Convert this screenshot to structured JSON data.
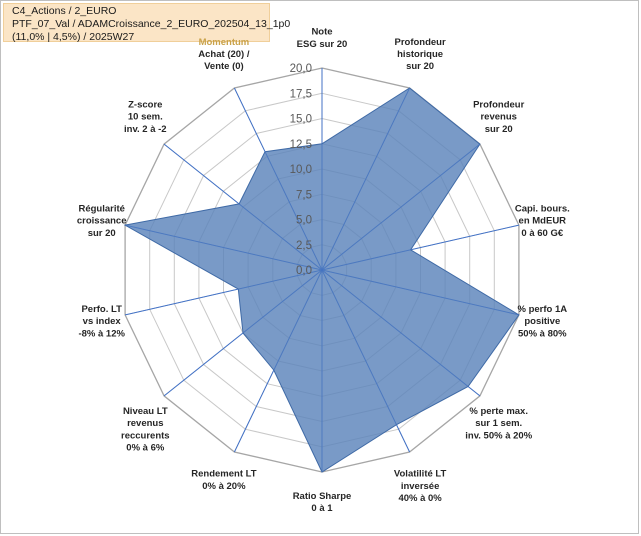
{
  "info_box": {
    "line1": "C4_Actions / 2_EURO",
    "line2": "PTF_07_Val / ADAMCroissance_2_EURO_202504_13_1p0",
    "line3": "(11,0% | 4,5%) / 2025W27"
  },
  "chart_data": {
    "type": "radar",
    "title": "",
    "rlim": [
      0,
      20
    ],
    "ticks": [
      "0,0",
      "2,5",
      "5,0",
      "7,5",
      "10,0",
      "12,5",
      "15,0",
      "17,5",
      "20,0"
    ],
    "grid": true,
    "axes": [
      {
        "label_lines": [
          "Note",
          "ESG sur 20"
        ],
        "value": 12.5
      },
      {
        "label_lines": [
          "Profondeur",
          "historique",
          "sur 20"
        ],
        "value": 20
      },
      {
        "label_lines": [
          "Profondeur",
          "revenus",
          "sur 20"
        ],
        "value": 20
      },
      {
        "label_lines": [
          "Capi. bours.",
          "en MdEUR",
          "0 à 60 G€"
        ],
        "value": 9
      },
      {
        "label_lines": [
          "% perfo 1A",
          "positive",
          "50% à 80%"
        ],
        "value": 20
      },
      {
        "label_lines": [
          "% perte max.",
          "sur 1 sem.",
          "inv. 50% à 20%"
        ],
        "value": 18.5
      },
      {
        "label_lines": [
          "Volatilité LT",
          "inversée",
          "40% à 0%"
        ],
        "value": 17
      },
      {
        "label_lines": [
          "Ratio Sharpe",
          "0 à 1"
        ],
        "value": 20
      },
      {
        "label_lines": [
          "Rendement LT",
          "0% à 20%"
        ],
        "value": 11
      },
      {
        "label_lines": [
          "Niveau LT",
          "revenus",
          "reccurents",
          "0% à 6%"
        ],
        "value": 10
      },
      {
        "label_lines": [
          "Perfo. LT",
          "vs index",
          "-8% à 12%"
        ],
        "value": 8.5
      },
      {
        "label_lines": [
          "Régularité",
          "croissance",
          "sur 20"
        ],
        "value": 20
      },
      {
        "label_lines": [
          "Z-score",
          "10 sem.",
          "inv. 2 à -2"
        ],
        "value": 10.5
      },
      {
        "label_lines": [
          "Momentum",
          "Achat (20) /",
          "Vente (0)"
        ],
        "value": 13
      }
    ],
    "colors": {
      "fill": "#5b84bb",
      "stroke": "#3f6aa6",
      "axis": "#4472c4",
      "grid": "#c8c8c8"
    }
  }
}
